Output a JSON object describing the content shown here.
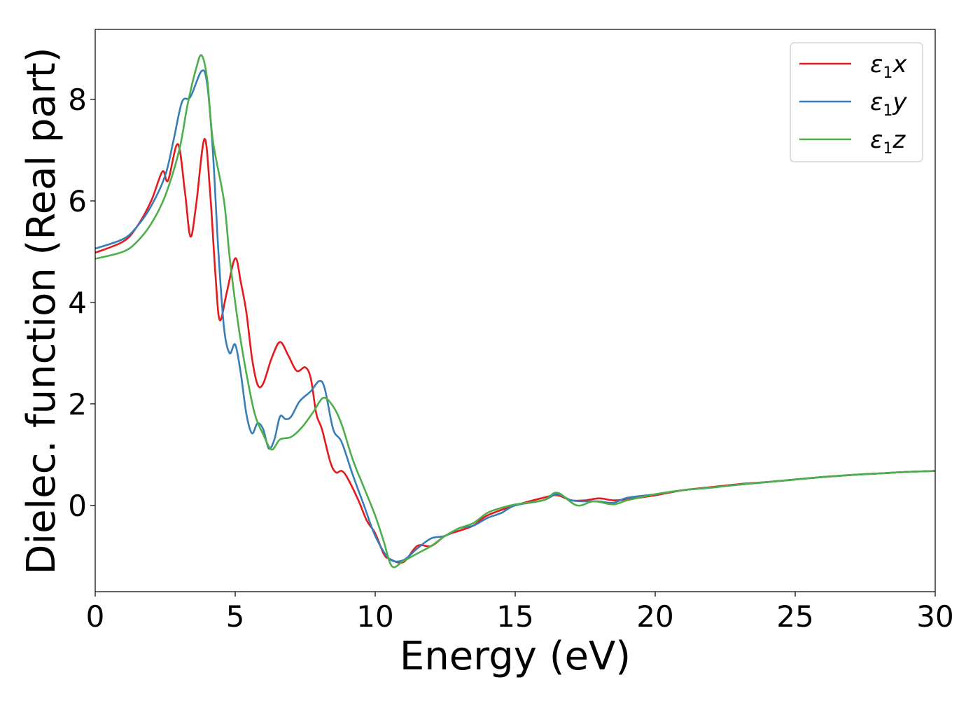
{
  "chart_data": {
    "type": "line",
    "title": "",
    "xlabel": "Energy (eV)",
    "ylabel": "Dielec. function (Real part)",
    "xlim": [
      0,
      30
    ],
    "ylim": [
      -1.7,
      9.38
    ],
    "xticks": [
      0,
      5,
      10,
      15,
      20,
      25,
      30
    ],
    "yticks": [
      0,
      2,
      4,
      6,
      8
    ],
    "grid": false,
    "legend_placement": "top-right",
    "series": [
      {
        "name": "ε₁x",
        "label_base": "ε",
        "label_sub": "1",
        "label_var": "x",
        "color": "#e41a1c",
        "x": [
          0,
          1,
          1.5,
          2,
          2.4,
          2.6,
          2.95,
          3.2,
          3.4,
          3.6,
          3.9,
          4.1,
          4.3,
          4.45,
          4.7,
          5.0,
          5.2,
          5.4,
          5.6,
          5.8,
          6.0,
          6.3,
          6.6,
          6.9,
          7.2,
          7.5,
          7.7,
          7.9,
          8.1,
          8.4,
          8.6,
          8.8,
          9.0,
          9.4,
          9.7,
          10.0,
          10.3,
          10.5,
          11.0,
          11.5,
          12.0,
          12.5,
          13,
          13.5,
          14,
          15,
          16,
          16.5,
          17,
          17.5,
          18,
          18.5,
          19,
          20,
          21,
          22,
          23,
          24,
          25,
          26,
          27,
          28,
          29,
          30
        ],
        "y": [
          4.98,
          5.2,
          5.5,
          6.0,
          6.58,
          6.4,
          7.12,
          6.2,
          5.3,
          5.9,
          7.22,
          6.2,
          4.5,
          3.65,
          4.2,
          4.87,
          4.4,
          3.8,
          2.9,
          2.38,
          2.4,
          2.9,
          3.22,
          2.95,
          2.65,
          2.72,
          2.5,
          1.8,
          1.5,
          0.85,
          0.65,
          0.68,
          0.55,
          0.1,
          -0.3,
          -0.55,
          -0.95,
          -1.05,
          -1.12,
          -0.8,
          -0.8,
          -0.6,
          -0.5,
          -0.4,
          -0.2,
          0.0,
          0.15,
          0.2,
          0.1,
          0.1,
          0.14,
          0.1,
          0.12,
          0.2,
          0.3,
          0.36,
          0.42,
          0.46,
          0.51,
          0.56,
          0.6,
          0.63,
          0.66,
          0.68
        ]
      },
      {
        "name": "ε₁y",
        "label_base": "ε",
        "label_sub": "1",
        "label_var": "y",
        "color": "#377eb8",
        "x": [
          0,
          1,
          1.5,
          2,
          2.5,
          2.8,
          3.1,
          3.4,
          3.8,
          4.0,
          4.2,
          4.4,
          4.6,
          4.8,
          5.0,
          5.2,
          5.4,
          5.6,
          5.8,
          6.0,
          6.2,
          6.4,
          6.6,
          6.8,
          7.0,
          7.3,
          7.7,
          8.0,
          8.2,
          8.5,
          8.8,
          9.2,
          9.6,
          10.0,
          10.5,
          11.0,
          11.5,
          12.0,
          12.5,
          13,
          13.5,
          14,
          14.5,
          15,
          16,
          16.5,
          17,
          17.5,
          18,
          18.5,
          19,
          20,
          21,
          22,
          23,
          24,
          25,
          26,
          27,
          28,
          29,
          30
        ],
        "y": [
          5.06,
          5.25,
          5.5,
          5.9,
          6.5,
          7.2,
          7.95,
          8.05,
          8.56,
          8.3,
          7.0,
          5.0,
          3.5,
          3.0,
          3.17,
          2.6,
          1.8,
          1.42,
          1.62,
          1.5,
          1.12,
          1.3,
          1.75,
          1.7,
          1.75,
          2.05,
          2.25,
          2.45,
          2.3,
          1.5,
          1.25,
          0.6,
          0.0,
          -0.6,
          -1.05,
          -1.08,
          -0.85,
          -0.65,
          -0.6,
          -0.45,
          -0.4,
          -0.25,
          -0.15,
          0.0,
          0.1,
          0.22,
          0.1,
          0.08,
          0.08,
          0.05,
          0.15,
          0.22,
          0.3,
          0.35,
          0.41,
          0.46,
          0.51,
          0.56,
          0.6,
          0.63,
          0.66,
          0.68
        ]
      },
      {
        "name": "ε₁z",
        "label_base": "ε",
        "label_sub": "1",
        "label_var": "z",
        "color": "#4daf4a",
        "x": [
          0,
          1,
          1.5,
          2,
          2.5,
          3.0,
          3.3,
          3.6,
          3.8,
          4.0,
          4.2,
          4.6,
          4.8,
          5.1,
          5.4,
          5.7,
          6.0,
          6.3,
          6.6,
          7.0,
          7.4,
          7.8,
          8.15,
          8.5,
          8.8,
          9.2,
          9.6,
          10.0,
          10.3,
          10.6,
          11.0,
          11.5,
          12.0,
          12.5,
          13,
          13.5,
          14,
          14.5,
          15,
          16,
          16.5,
          17.2,
          17.8,
          18.5,
          19,
          20,
          21,
          22,
          23,
          24,
          25,
          26,
          27,
          28,
          29,
          30
        ],
        "y": [
          4.86,
          5.0,
          5.2,
          5.55,
          6.1,
          7.0,
          7.9,
          8.6,
          8.87,
          8.4,
          7.2,
          6.0,
          4.9,
          3.6,
          2.6,
          1.8,
          1.4,
          1.1,
          1.3,
          1.35,
          1.55,
          1.85,
          2.12,
          1.95,
          1.6,
          0.9,
          0.35,
          -0.2,
          -0.7,
          -1.2,
          -1.1,
          -0.95,
          -0.8,
          -0.6,
          -0.45,
          -0.35,
          -0.15,
          -0.05,
          0.02,
          0.1,
          0.25,
          0.0,
          0.08,
          0.02,
          0.1,
          0.22,
          0.3,
          0.35,
          0.41,
          0.46,
          0.51,
          0.56,
          0.6,
          0.63,
          0.66,
          0.68
        ]
      }
    ]
  }
}
